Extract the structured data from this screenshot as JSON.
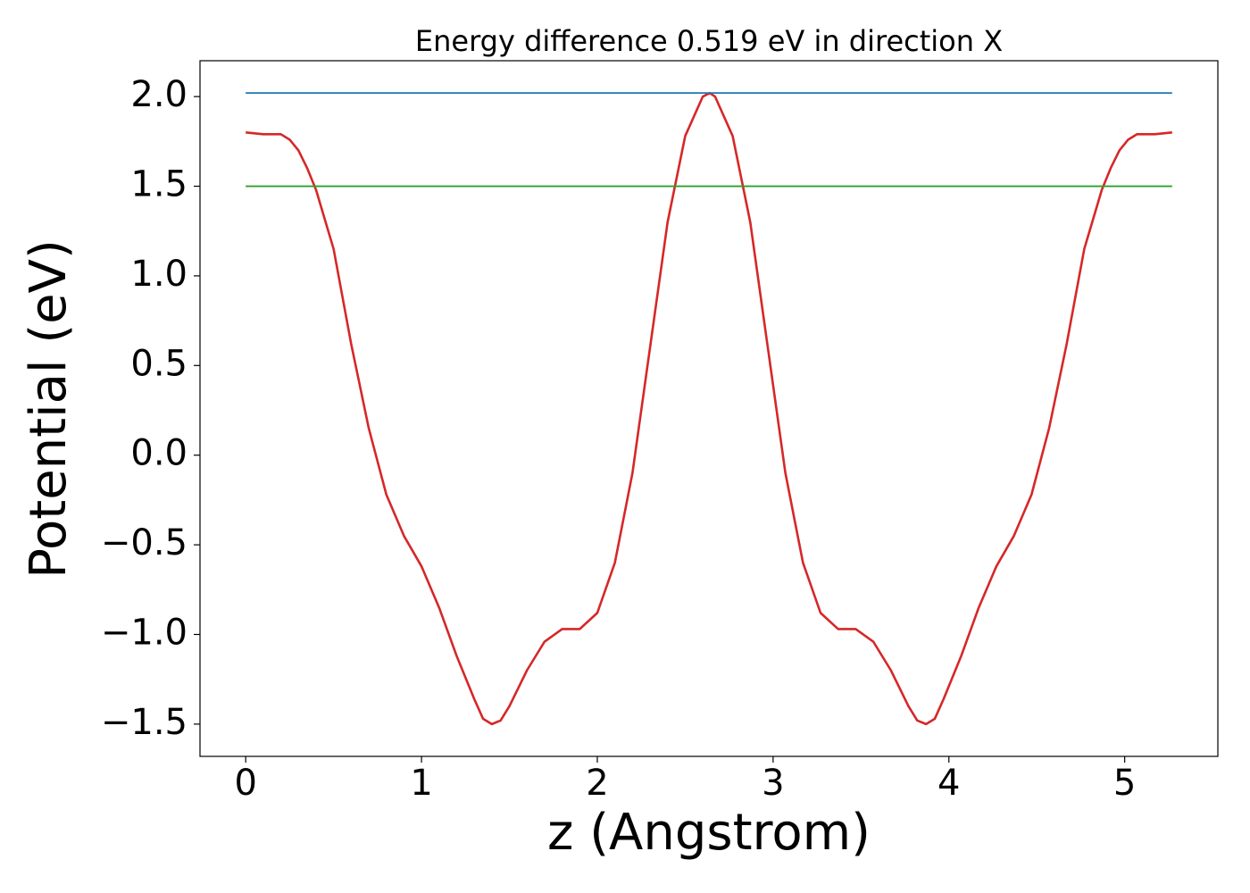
{
  "chart_data": {
    "type": "line",
    "title": "Energy difference 0.519 eV in direction X",
    "xlabel": "z (Angstrom)",
    "ylabel": "Potential (eV)",
    "series": [
      {
        "color": "#d62728",
        "x": [
          0,
          0.1,
          0.2,
          0.25,
          0.3,
          0.35,
          0.4,
          0.5,
          0.6,
          0.7,
          0.8,
          0.9,
          1.0,
          1.1,
          1.2,
          1.3,
          1.35,
          1.4,
          1.45,
          1.5,
          1.6,
          1.7,
          1.8,
          1.9,
          2.0,
          2.1,
          2.2,
          2.3,
          2.4,
          2.5,
          2.6,
          2.64,
          2.67,
          2.77,
          2.87,
          2.97,
          3.07,
          3.17,
          3.27,
          3.37,
          3.47,
          3.57,
          3.67,
          3.77,
          3.82,
          3.87,
          3.92,
          3.97,
          4.07,
          4.17,
          4.27,
          4.37,
          4.47,
          4.57,
          4.67,
          4.77,
          4.87,
          4.92,
          4.97,
          5.02,
          5.07,
          5.17,
          5.27
        ],
        "values": [
          1.8,
          1.79,
          1.79,
          1.76,
          1.7,
          1.6,
          1.48,
          1.15,
          0.62,
          0.15,
          -0.22,
          -0.45,
          -0.62,
          -0.85,
          -1.12,
          -1.36,
          -1.47,
          -1.5,
          -1.48,
          -1.4,
          -1.2,
          -1.04,
          -0.97,
          -0.97,
          -0.88,
          -0.6,
          -0.1,
          0.6,
          1.3,
          1.78,
          2.0,
          2.02,
          2.0,
          1.78,
          1.3,
          0.6,
          -0.1,
          -0.6,
          -0.88,
          -0.97,
          -0.97,
          -1.04,
          -1.2,
          -1.4,
          -1.48,
          -1.5,
          -1.47,
          -1.36,
          -1.12,
          -0.85,
          -0.62,
          -0.45,
          -0.22,
          0.15,
          0.62,
          1.15,
          1.48,
          1.6,
          1.7,
          1.76,
          1.79,
          1.79,
          1.8
        ]
      },
      {
        "color": "#1f77b4",
        "x": [
          0,
          5.27
        ],
        "values": [
          2.02,
          2.02
        ]
      },
      {
        "color": "#2ca02c",
        "x": [
          0,
          5.27
        ],
        "values": [
          1.5,
          1.5
        ]
      }
    ],
    "xlim": [
      -0.26,
      5.53
    ],
    "xticks": [
      0,
      1,
      2,
      3,
      4,
      5
    ],
    "ylim": [
      -1.68,
      2.2
    ],
    "yticks": [
      {
        "value": -1.5,
        "label": "−1.5"
      },
      {
        "value": -1.0,
        "label": "−1.0"
      },
      {
        "value": -0.5,
        "label": "−0.5"
      },
      {
        "value": 0,
        "label": "0.0"
      },
      0.5,
      {
        "value": 1.0,
        "label": "1.0"
      },
      1.5,
      {
        "value": 2.0,
        "label": "2.0"
      }
    ],
    "grid": false
  }
}
